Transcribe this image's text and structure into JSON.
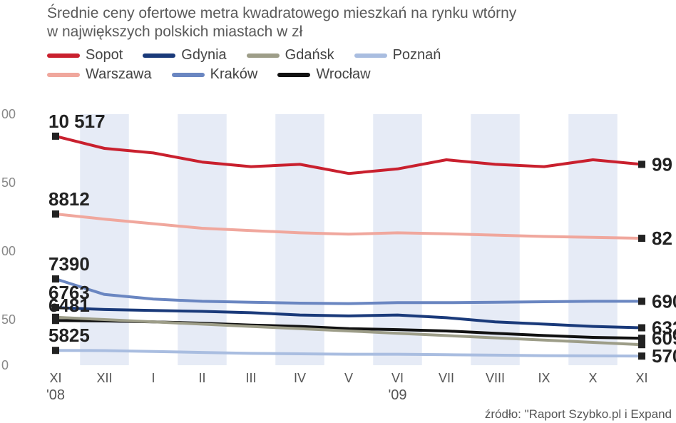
{
  "title_line1": "Średnie ceny ofertowe metra kwadratowego mieszkań na rynku wtórny",
  "title_line2": "w największych polskich miastach w zł",
  "source": "źródło: \"Raport Szybko.pl i Expand",
  "chart": {
    "type": "line",
    "background_color": "#ffffff",
    "title_fontsize": 21,
    "title_color": "#5a5a5a",
    "label_fontsize": 20,
    "data_label_fontsize": 26,
    "data_label_color": "#222222",
    "tick_color": "#555555",
    "x_categories": [
      "XI",
      "XII",
      "I",
      "II",
      "III",
      "IV",
      "V",
      "VI",
      "VII",
      "VIII",
      "IX",
      "X",
      "XI"
    ],
    "x_year_labels": [
      {
        "text": "'08",
        "under_index": 0
      },
      {
        "text": "'09",
        "under_index": 7
      }
    ],
    "y_ticks_partial": [
      "0",
      "50",
      "00",
      "50",
      "00"
    ],
    "ylim": [
      5500,
      11000
    ],
    "band_color": "#c7d3ea",
    "band_alpha": 0.45,
    "line_width": 4,
    "legend_rows": [
      [
        "Sopot",
        "Gdynia",
        "Gdańsk",
        "Poznań"
      ],
      [
        "Warszawa",
        "Kraków",
        "Wrocław"
      ]
    ],
    "series": [
      {
        "name": "Sopot",
        "color": "#c9202e",
        "start_label": "10 517",
        "end_label": "99",
        "data": [
          10517,
          10250,
          10150,
          9950,
          9850,
          9900,
          9700,
          9800,
          10000,
          9900,
          9850,
          10000,
          9900
        ]
      },
      {
        "name": "Warszawa",
        "color": "#f0a79d",
        "start_label": "8812",
        "end_label": "82",
        "data": [
          8812,
          8700,
          8600,
          8500,
          8450,
          8400,
          8370,
          8400,
          8380,
          8350,
          8320,
          8300,
          8280
        ]
      },
      {
        "name": "Kraków",
        "color": "#6a86c1",
        "start_label": "7390",
        "end_label": "690",
        "data": [
          7390,
          7050,
          6950,
          6900,
          6880,
          6860,
          6850,
          6870,
          6870,
          6880,
          6890,
          6900,
          6900
        ]
      },
      {
        "name": "Gdynia",
        "color": "#1a3a7a",
        "start_label": "6763",
        "end_label": "632",
        "data": [
          6763,
          6720,
          6700,
          6680,
          6650,
          6600,
          6580,
          6600,
          6540,
          6450,
          6400,
          6350,
          6320
        ]
      },
      {
        "name": "Wrocław",
        "color": "#111111",
        "start_label": "6481",
        "end_label": "609",
        "data": [
          6481,
          6470,
          6450,
          6420,
          6380,
          6350,
          6300,
          6280,
          6250,
          6200,
          6150,
          6110,
          6090
        ]
      },
      {
        "name": "Gdańsk",
        "color": "#9d9d88",
        "start_label": "",
        "end_label": "",
        "data": [
          6550,
          6500,
          6450,
          6400,
          6350,
          6300,
          6250,
          6200,
          6150,
          6100,
          6050,
          6000,
          5950
        ]
      },
      {
        "name": "Poznań",
        "color": "#a9bde0",
        "start_label": "5825",
        "end_label": "570",
        "data": [
          5825,
          5820,
          5800,
          5780,
          5760,
          5750,
          5740,
          5740,
          5730,
          5720,
          5710,
          5705,
          5700
        ]
      }
    ]
  }
}
